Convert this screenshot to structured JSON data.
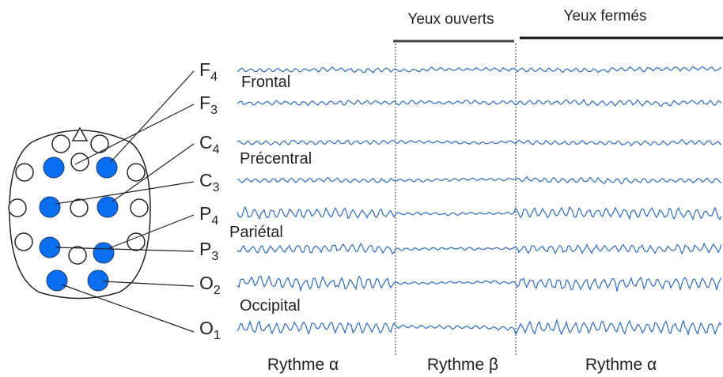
{
  "header": {
    "eyes_open": "Yeux ouverts",
    "eyes_closed": "Yeux fermés"
  },
  "channels": [
    {
      "letter": "F",
      "index": "4"
    },
    {
      "letter": "F",
      "index": "3"
    },
    {
      "letter": "C",
      "index": "4"
    },
    {
      "letter": "C",
      "index": "3"
    },
    {
      "letter": "P",
      "index": "4"
    },
    {
      "letter": "P",
      "index": "3"
    },
    {
      "letter": "O",
      "index": "2"
    },
    {
      "letter": "O",
      "index": "1"
    }
  ],
  "regions": [
    "Frontal",
    "Précentral",
    "Pariétal",
    "Occipital"
  ],
  "rhythms": [
    "Rythme α",
    "Rythme β",
    "Rythme α"
  ]
}
